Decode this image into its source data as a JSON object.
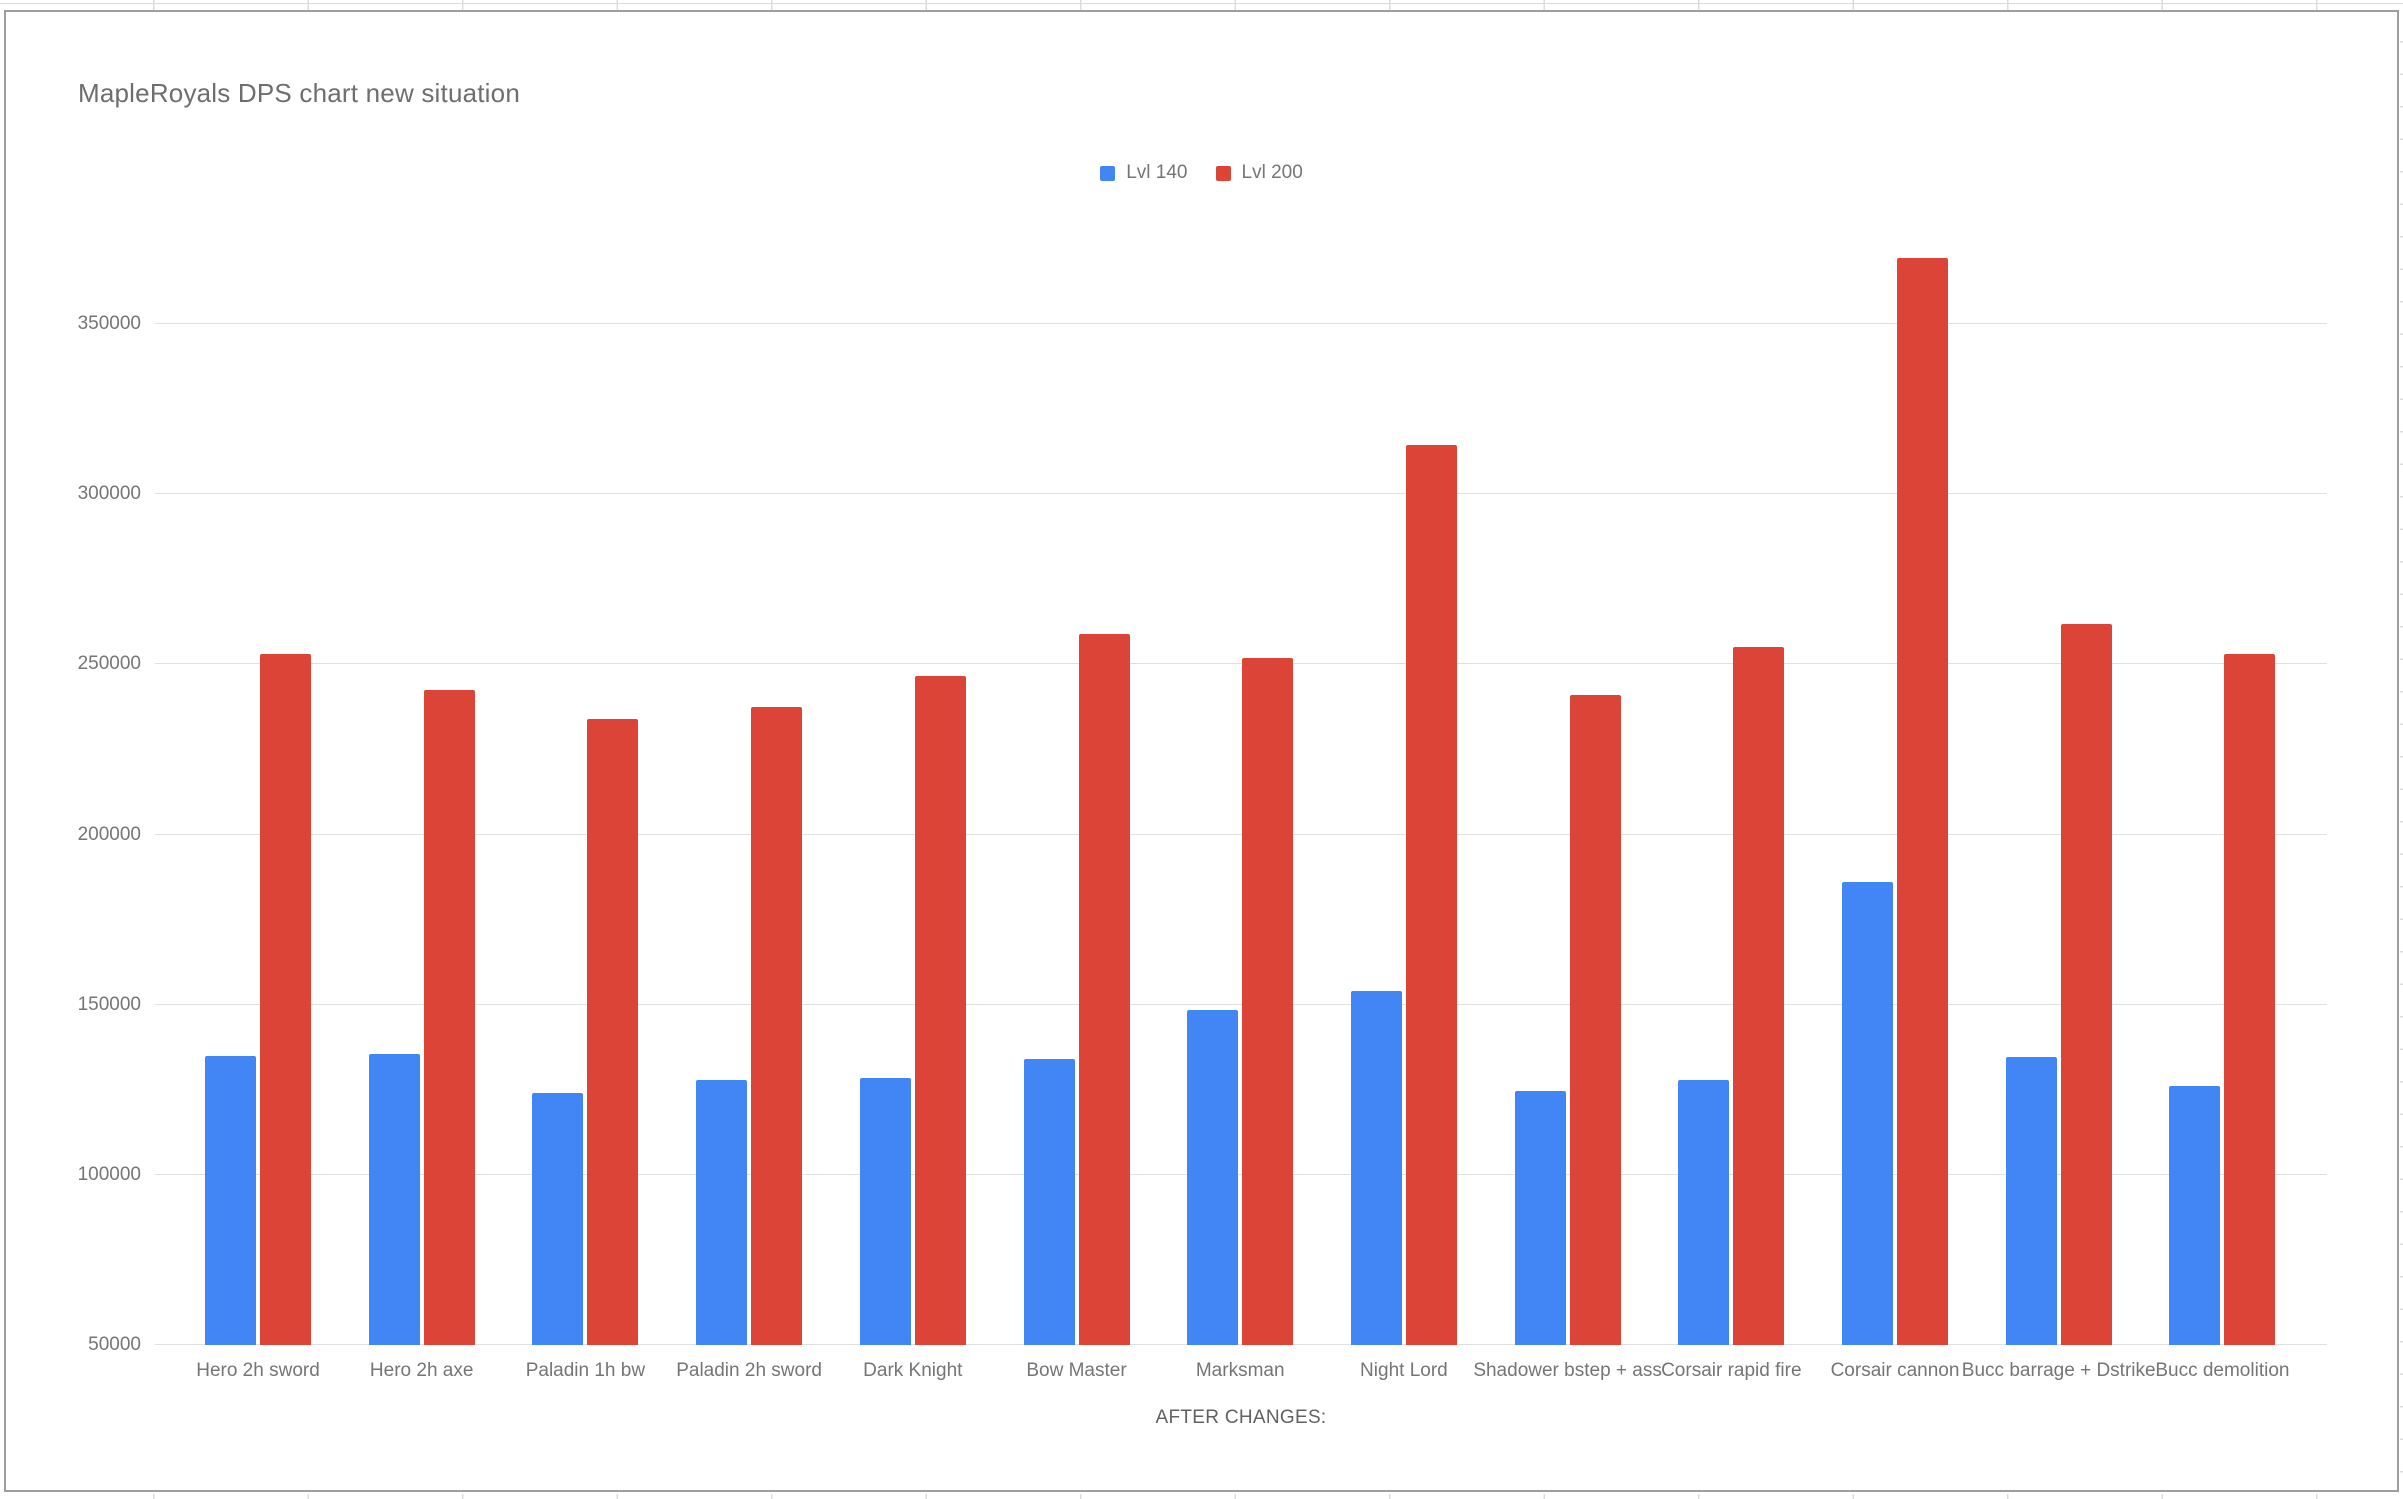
{
  "chart_data": {
    "type": "bar",
    "title": "MapleRoyals DPS chart new situation",
    "xlabel": "AFTER CHANGES:",
    "ylabel": "",
    "categories": [
      "Hero 2h sword",
      "Hero 2h axe",
      "Paladin 1h bw",
      "Paladin 2h sword",
      "Dark Knight",
      "Bow Master",
      "Marksman",
      "Night Lord",
      "Shadower bstep + ass",
      "Corsair rapid fire",
      "Corsair cannon",
      "Bucc barrage + Dstrike",
      "Bucc demolition"
    ],
    "series": [
      {
        "name": "Lvl 140",
        "color": "#4285f4",
        "values": [
          135000,
          135500,
          124000,
          128000,
          128500,
          134000,
          148500,
          154000,
          124500,
          128000,
          186000,
          134500,
          126000
        ]
      },
      {
        "name": "Lvl 200",
        "color": "#db4437",
        "values": [
          253000,
          242500,
          234000,
          237500,
          246500,
          259000,
          252000,
          314500,
          241000,
          255000,
          369500,
          262000,
          253000
        ]
      }
    ],
    "ylim": [
      50000,
      350000
    ],
    "yticks": [
      50000,
      100000,
      150000,
      200000,
      250000,
      300000,
      350000
    ],
    "grid": true,
    "legend_position": "top-center",
    "bars_clipped_at_ymin": true
  }
}
